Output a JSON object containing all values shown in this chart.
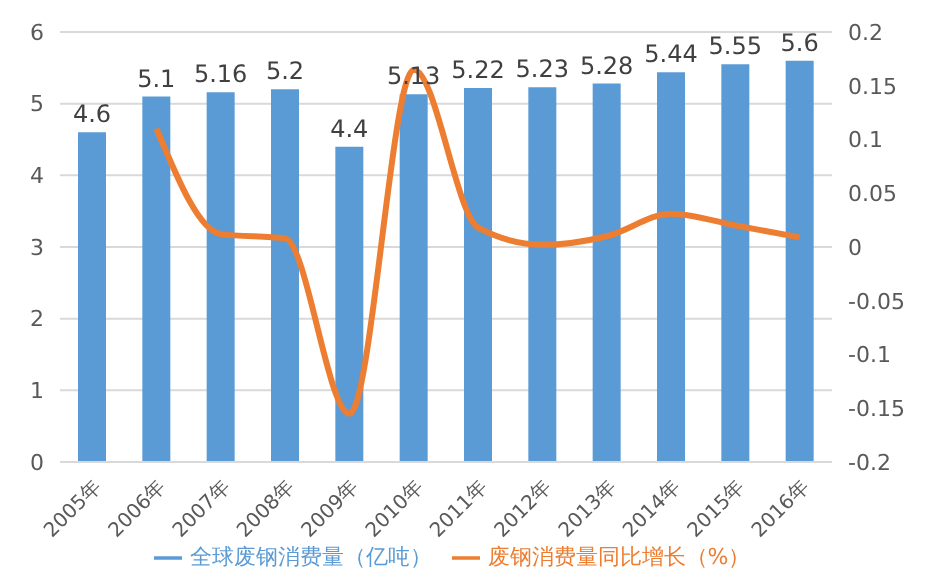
{
  "chart_data": {
    "type": "bar",
    "categories": [
      "2005年",
      "2006年",
      "2007年",
      "2008年",
      "2009年",
      "2010年",
      "2011年",
      "2012年",
      "2013年",
      "2014年",
      "2015年",
      "2016年"
    ],
    "series": [
      {
        "name": "全球废钢消费量（亿吨）",
        "color": "#5b9bd5",
        "values": [
          4.6,
          5.1,
          5.16,
          5.2,
          4.4,
          5.13,
          5.22,
          5.23,
          5.28,
          5.44,
          5.55,
          5.6
        ],
        "data_labels": true
      },
      {
        "name": "废钢消费量同比增长（%）",
        "type": "line",
        "axis": "y2",
        "color": "#ed7d31",
        "values": [
          null,
          0.11,
          0.012,
          0.008,
          -0.155,
          0.165,
          0.018,
          0.002,
          0.01,
          0.031,
          0.02,
          0.009
        ]
      }
    ],
    "ylim": [
      0,
      6
    ],
    "yticks": [
      0,
      1,
      2,
      3,
      4,
      5,
      6
    ],
    "y2lim": [
      -0.2,
      0.2
    ],
    "y2ticks": [
      -0.2,
      -0.15,
      -0.1,
      -0.05,
      0,
      0.05,
      0.1,
      0.15,
      0.2
    ],
    "grid": "y",
    "legend": "bottom",
    "marker": "none",
    "line_style": "solid"
  }
}
